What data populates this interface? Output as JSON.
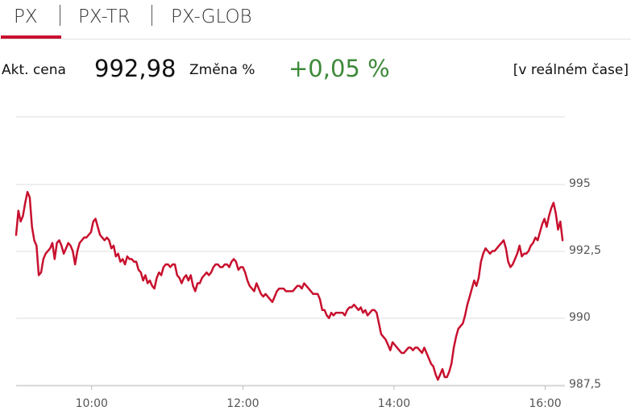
{
  "tabs": [
    {
      "label": "PX",
      "active": true
    },
    {
      "label": "PX-TR",
      "active": false
    },
    {
      "label": "PX-GLOB",
      "active": false
    }
  ],
  "summary": {
    "price_label": "Akt. cena",
    "price": "992,98",
    "change_label": "Změna %",
    "change": "+0,05 %",
    "realtime": "[v reálném čase]"
  },
  "colors": {
    "accent": "#c8102e",
    "positive": "#3d8a3a",
    "line": "#c8102e"
  },
  "chart_data": {
    "type": "line",
    "y_ticks": [
      "995",
      "992,5",
      "990",
      "987,5"
    ],
    "x_ticks": [
      "10:00",
      "12:00",
      "14:00",
      "16:00"
    ],
    "ylim": [
      987.5,
      997.5
    ],
    "series": [
      {
        "values": [
          [
            9.0,
            993.1
          ],
          [
            9.03,
            994.0
          ],
          [
            9.06,
            993.6
          ],
          [
            9.09,
            993.8
          ],
          [
            9.12,
            994.3
          ],
          [
            9.15,
            994.7
          ],
          [
            9.18,
            994.5
          ],
          [
            9.21,
            993.4
          ],
          [
            9.24,
            992.9
          ],
          [
            9.27,
            992.7
          ],
          [
            9.3,
            991.6
          ],
          [
            9.33,
            991.7
          ],
          [
            9.36,
            992.2
          ],
          [
            9.39,
            992.4
          ],
          [
            9.42,
            992.5
          ],
          [
            9.45,
            992.6
          ],
          [
            9.48,
            992.8
          ],
          [
            9.51,
            992.2
          ],
          [
            9.54,
            992.8
          ],
          [
            9.57,
            992.9
          ],
          [
            9.6,
            992.7
          ],
          [
            9.63,
            992.4
          ],
          [
            9.66,
            992.6
          ],
          [
            9.69,
            992.8
          ],
          [
            9.72,
            992.7
          ],
          [
            9.75,
            992.5
          ],
          [
            9.78,
            992.0
          ],
          [
            9.81,
            992.5
          ],
          [
            9.84,
            992.8
          ],
          [
            9.87,
            992.9
          ],
          [
            9.9,
            993.0
          ],
          [
            9.93,
            993.0
          ],
          [
            9.96,
            993.1
          ],
          [
            9.99,
            993.2
          ],
          [
            10.02,
            993.6
          ],
          [
            10.05,
            993.7
          ],
          [
            10.08,
            993.4
          ],
          [
            10.11,
            993.1
          ],
          [
            10.14,
            993.0
          ],
          [
            10.17,
            992.9
          ],
          [
            10.2,
            993.0
          ],
          [
            10.23,
            992.9
          ],
          [
            10.26,
            992.6
          ],
          [
            10.29,
            992.7
          ],
          [
            10.32,
            992.3
          ],
          [
            10.35,
            992.4
          ],
          [
            10.38,
            992.1
          ],
          [
            10.41,
            992.2
          ],
          [
            10.44,
            992.0
          ],
          [
            10.47,
            992.3
          ],
          [
            10.5,
            992.2
          ],
          [
            10.53,
            992.2
          ],
          [
            10.56,
            992.1
          ],
          [
            10.59,
            992.1
          ],
          [
            10.62,
            991.8
          ],
          [
            10.65,
            991.7
          ],
          [
            10.68,
            991.4
          ],
          [
            10.71,
            991.6
          ],
          [
            10.74,
            991.3
          ],
          [
            10.77,
            991.4
          ],
          [
            10.8,
            991.2
          ],
          [
            10.83,
            991.1
          ],
          [
            10.86,
            991.5
          ],
          [
            10.89,
            991.7
          ],
          [
            10.92,
            991.6
          ],
          [
            10.95,
            991.9
          ],
          [
            10.98,
            992.0
          ],
          [
            11.01,
            992.0
          ],
          [
            11.04,
            991.9
          ],
          [
            11.07,
            992.0
          ],
          [
            11.1,
            992.0
          ],
          [
            11.13,
            991.6
          ],
          [
            11.16,
            991.5
          ],
          [
            11.19,
            991.3
          ],
          [
            11.22,
            991.5
          ],
          [
            11.25,
            991.6
          ],
          [
            11.28,
            991.4
          ],
          [
            11.31,
            991.6
          ],
          [
            11.34,
            991.2
          ],
          [
            11.37,
            991.0
          ],
          [
            11.4,
            991.3
          ],
          [
            11.43,
            991.3
          ],
          [
            11.46,
            991.5
          ],
          [
            11.49,
            991.6
          ],
          [
            11.52,
            991.7
          ],
          [
            11.55,
            991.6
          ],
          [
            11.58,
            991.7
          ],
          [
            11.61,
            991.9
          ],
          [
            11.64,
            992.0
          ],
          [
            11.67,
            992.0
          ],
          [
            11.7,
            991.9
          ],
          [
            11.73,
            991.9
          ],
          [
            11.76,
            992.0
          ],
          [
            11.79,
            992.0
          ],
          [
            11.82,
            991.9
          ],
          [
            11.85,
            992.1
          ],
          [
            11.88,
            992.2
          ],
          [
            11.91,
            992.1
          ],
          [
            11.94,
            991.8
          ],
          [
            11.97,
            991.9
          ],
          [
            12.0,
            991.9
          ],
          [
            12.03,
            991.7
          ],
          [
            12.06,
            991.4
          ],
          [
            12.09,
            991.2
          ],
          [
            12.12,
            991.1
          ],
          [
            12.15,
            991.0
          ],
          [
            12.18,
            991.3
          ],
          [
            12.21,
            991.1
          ],
          [
            12.24,
            990.9
          ],
          [
            12.27,
            990.8
          ],
          [
            12.3,
            990.9
          ],
          [
            12.33,
            990.8
          ],
          [
            12.36,
            990.7
          ],
          [
            12.39,
            990.6
          ],
          [
            12.42,
            990.8
          ],
          [
            12.45,
            991.0
          ],
          [
            12.48,
            991.1
          ],
          [
            12.51,
            991.1
          ],
          [
            12.54,
            991.1
          ],
          [
            12.57,
            991.0
          ],
          [
            12.6,
            991.0
          ],
          [
            12.63,
            991.0
          ],
          [
            12.66,
            991.0
          ],
          [
            12.69,
            991.1
          ],
          [
            12.72,
            991.2
          ],
          [
            12.75,
            991.2
          ],
          [
            12.78,
            991.1
          ],
          [
            12.81,
            991.3
          ],
          [
            12.84,
            991.2
          ],
          [
            12.87,
            991.1
          ],
          [
            12.9,
            991.0
          ],
          [
            12.93,
            990.9
          ],
          [
            12.96,
            990.9
          ],
          [
            12.99,
            990.9
          ],
          [
            13.02,
            990.7
          ],
          [
            13.05,
            990.3
          ],
          [
            13.08,
            990.3
          ],
          [
            13.11,
            990.1
          ],
          [
            13.14,
            990.0
          ],
          [
            13.17,
            990.2
          ],
          [
            13.2,
            990.1
          ],
          [
            13.23,
            990.2
          ],
          [
            13.26,
            990.2
          ],
          [
            13.29,
            990.2
          ],
          [
            13.32,
            990.2
          ],
          [
            13.35,
            990.1
          ],
          [
            13.38,
            990.3
          ],
          [
            13.41,
            990.4
          ],
          [
            13.44,
            990.4
          ],
          [
            13.47,
            990.5
          ],
          [
            13.5,
            990.4
          ],
          [
            13.53,
            990.3
          ],
          [
            13.56,
            990.4
          ],
          [
            13.59,
            990.2
          ],
          [
            13.62,
            990.3
          ],
          [
            13.65,
            990.1
          ],
          [
            13.68,
            990.2
          ],
          [
            13.71,
            990.3
          ],
          [
            13.74,
            990.3
          ],
          [
            13.77,
            990.2
          ],
          [
            13.8,
            989.8
          ],
          [
            13.83,
            989.4
          ],
          [
            13.86,
            989.3
          ],
          [
            13.89,
            989.2
          ],
          [
            13.92,
            989.0
          ],
          [
            13.95,
            988.8
          ],
          [
            13.98,
            989.1
          ],
          [
            14.01,
            989.0
          ],
          [
            14.04,
            988.9
          ],
          [
            14.07,
            988.8
          ],
          [
            14.1,
            988.7
          ],
          [
            14.13,
            988.7
          ],
          [
            14.16,
            988.8
          ],
          [
            14.19,
            988.9
          ],
          [
            14.22,
            988.9
          ],
          [
            14.25,
            988.8
          ],
          [
            14.28,
            988.9
          ],
          [
            14.31,
            988.9
          ],
          [
            14.34,
            988.8
          ],
          [
            14.37,
            988.7
          ],
          [
            14.4,
            988.9
          ],
          [
            14.43,
            988.7
          ],
          [
            14.46,
            988.5
          ],
          [
            14.49,
            988.3
          ],
          [
            14.52,
            988.2
          ],
          [
            14.55,
            987.9
          ],
          [
            14.58,
            987.7
          ],
          [
            14.61,
            987.9
          ],
          [
            14.64,
            988.1
          ],
          [
            14.67,
            987.8
          ],
          [
            14.7,
            987.8
          ],
          [
            14.73,
            988.0
          ],
          [
            14.76,
            988.3
          ],
          [
            14.79,
            988.9
          ],
          [
            14.82,
            989.3
          ],
          [
            14.85,
            989.6
          ],
          [
            14.88,
            989.7
          ],
          [
            14.91,
            989.8
          ],
          [
            14.94,
            990.1
          ],
          [
            14.97,
            990.5
          ],
          [
            15.0,
            990.8
          ],
          [
            15.03,
            991.1
          ],
          [
            15.06,
            991.4
          ],
          [
            15.09,
            991.2
          ],
          [
            15.12,
            991.5
          ],
          [
            15.15,
            992.1
          ],
          [
            15.18,
            992.4
          ],
          [
            15.21,
            992.6
          ],
          [
            15.24,
            992.5
          ],
          [
            15.27,
            992.4
          ],
          [
            15.3,
            992.5
          ],
          [
            15.33,
            992.5
          ],
          [
            15.36,
            992.6
          ],
          [
            15.39,
            992.7
          ],
          [
            15.42,
            992.8
          ],
          [
            15.45,
            992.9
          ],
          [
            15.48,
            992.6
          ],
          [
            15.51,
            992.1
          ],
          [
            15.54,
            991.9
          ],
          [
            15.57,
            992.0
          ],
          [
            15.6,
            992.2
          ],
          [
            15.63,
            992.4
          ],
          [
            15.66,
            992.7
          ],
          [
            15.69,
            992.3
          ],
          [
            15.72,
            992.4
          ],
          [
            15.75,
            992.4
          ],
          [
            15.78,
            992.5
          ],
          [
            15.81,
            992.7
          ],
          [
            15.84,
            992.8
          ],
          [
            15.87,
            993.0
          ],
          [
            15.9,
            992.9
          ],
          [
            15.93,
            993.2
          ],
          [
            15.96,
            993.5
          ],
          [
            15.99,
            993.7
          ],
          [
            16.02,
            993.4
          ],
          [
            16.05,
            993.8
          ],
          [
            16.08,
            994.1
          ],
          [
            16.11,
            994.3
          ],
          [
            16.14,
            993.9
          ],
          [
            16.17,
            993.3
          ],
          [
            16.2,
            993.6
          ],
          [
            16.23,
            992.9
          ]
        ]
      }
    ]
  }
}
